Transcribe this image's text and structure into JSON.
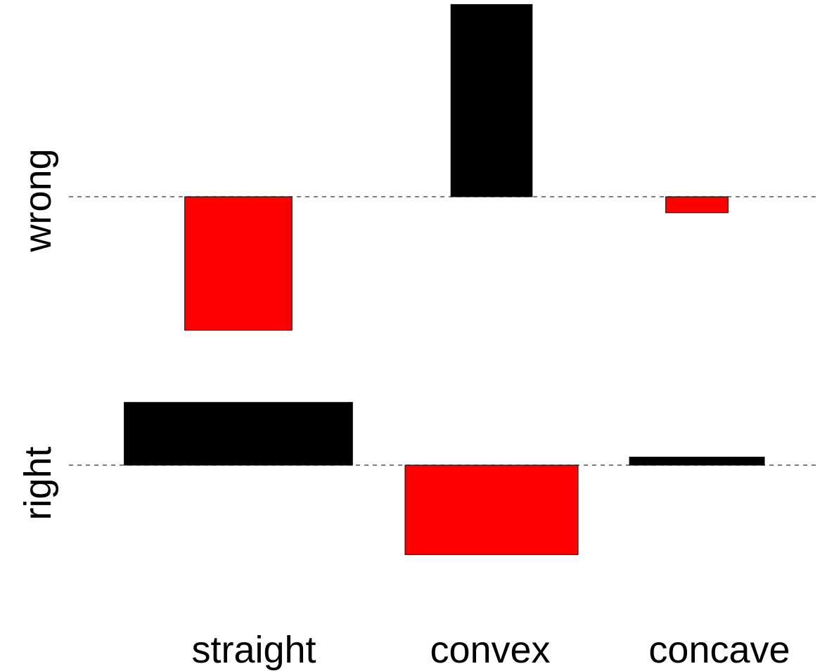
{
  "chart_data": {
    "type": "bar",
    "categories": [
      "straight",
      "convex",
      "concave"
    ],
    "rows": [
      {
        "label": "wrong",
        "bars": [
          {
            "category": "straight",
            "value": -1.0,
            "width": 0.62,
            "color": "#ff0000"
          },
          {
            "category": "convex",
            "value": 1.44,
            "width": 0.47,
            "color": "#000000"
          },
          {
            "category": "concave",
            "value": -0.12,
            "width": 0.36,
            "color": "#ff0000"
          }
        ]
      },
      {
        "label": "right",
        "bars": [
          {
            "category": "straight",
            "value": 0.47,
            "width": 1.32,
            "color": "#000000"
          },
          {
            "category": "convex",
            "value": -0.67,
            "width": 1.0,
            "color": "#ff0000"
          },
          {
            "category": "concave",
            "value": 0.06,
            "width": 0.78,
            "color": "#000000"
          }
        ]
      }
    ],
    "baseline_style": "dashed",
    "grid": false,
    "legend": "none"
  },
  "colors": {
    "positive": "#000000",
    "negative": "#ff0000"
  }
}
